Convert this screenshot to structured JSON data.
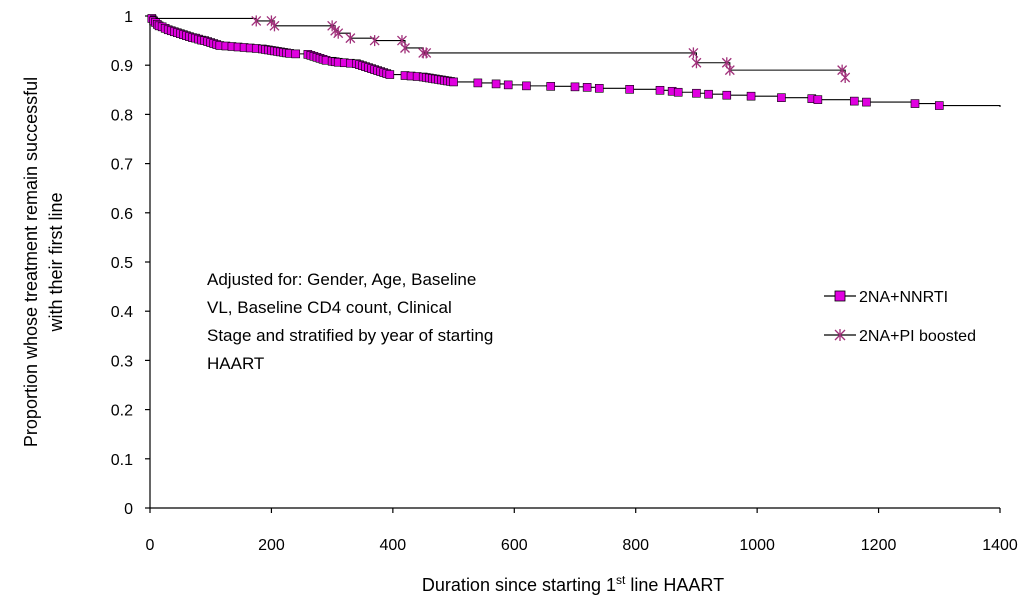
{
  "chart_data": {
    "type": "line",
    "xlabel": "Duration since starting 1st line HAART",
    "xlabel_parts": {
      "pre": "Duration since starting 1",
      "sup": "st",
      "post": " line HAART"
    },
    "ylabel_lines": [
      "Proportion whose treatment remain successful",
      "with their first line"
    ],
    "xlim": [
      0,
      1400
    ],
    "ylim": [
      0,
      1
    ],
    "x_ticks": [
      "0",
      "200",
      "400",
      "600",
      "800",
      "1000",
      "1200",
      "1400"
    ],
    "y_ticks": [
      "0",
      "0.1",
      "0.2",
      "0.3",
      "0.4",
      "0.5",
      "0.6",
      "0.7",
      "0.8",
      "0.9",
      "1"
    ],
    "grid": false,
    "legend_position": "right",
    "annotation": [
      "Adjusted for: Gender, Age, Baseline",
      "VL, Baseline CD4 count, Clinical",
      "Stage and stratified by year of starting",
      "HAART"
    ],
    "series": [
      {
        "name": "2NA+NNRTI",
        "marker": "square",
        "color": "#e000e0",
        "x": [
          0,
          3,
          6,
          9,
          12,
          15,
          20,
          25,
          30,
          35,
          40,
          45,
          50,
          55,
          60,
          65,
          70,
          75,
          80,
          85,
          90,
          95,
          100,
          105,
          110,
          115,
          125,
          135,
          145,
          155,
          165,
          175,
          185,
          190,
          195,
          200,
          205,
          210,
          215,
          220,
          225,
          230,
          240,
          260,
          265,
          270,
          275,
          280,
          285,
          290,
          300,
          305,
          310,
          320,
          330,
          340,
          345,
          350,
          355,
          360,
          365,
          370,
          375,
          380,
          385,
          390,
          395,
          420,
          430,
          440,
          450,
          455,
          460,
          465,
          470,
          475,
          480,
          485,
          490,
          495,
          500,
          540,
          570,
          590,
          620,
          660,
          700,
          720,
          740,
          790,
          840,
          860,
          870,
          900,
          920,
          950,
          990,
          1040,
          1090,
          1100,
          1160,
          1180,
          1260,
          1300,
          1400
        ],
        "y": [
          1.0,
          0.995,
          0.99,
          0.987,
          0.983,
          0.98,
          0.978,
          0.975,
          0.972,
          0.97,
          0.968,
          0.966,
          0.964,
          0.962,
          0.96,
          0.958,
          0.956,
          0.955,
          0.953,
          0.951,
          0.95,
          0.948,
          0.946,
          0.944,
          0.942,
          0.94,
          0.939,
          0.938,
          0.937,
          0.936,
          0.935,
          0.934,
          0.933,
          0.932,
          0.931,
          0.93,
          0.929,
          0.928,
          0.927,
          0.926,
          0.925,
          0.924,
          0.923,
          0.922,
          0.92,
          0.918,
          0.916,
          0.914,
          0.912,
          0.91,
          0.908,
          0.907,
          0.906,
          0.905,
          0.904,
          0.903,
          0.901,
          0.899,
          0.897,
          0.895,
          0.893,
          0.891,
          0.889,
          0.887,
          0.885,
          0.883,
          0.881,
          0.879,
          0.878,
          0.877,
          0.876,
          0.875,
          0.874,
          0.873,
          0.872,
          0.871,
          0.87,
          0.869,
          0.868,
          0.867,
          0.866,
          0.864,
          0.862,
          0.86,
          0.858,
          0.857,
          0.856,
          0.855,
          0.853,
          0.851,
          0.849,
          0.847,
          0.845,
          0.843,
          0.841,
          0.839,
          0.837,
          0.834,
          0.832,
          0.83,
          0.827,
          0.825,
          0.822,
          0.818,
          0.815
        ],
        "censor_x": [
          3,
          6,
          9,
          12,
          15,
          20,
          25,
          30,
          35,
          40,
          45,
          50,
          55,
          60,
          65,
          70,
          75,
          80,
          85,
          90,
          95,
          100,
          105,
          110,
          115,
          125,
          135,
          145,
          155,
          165,
          175,
          185,
          190,
          195,
          200,
          205,
          210,
          215,
          220,
          225,
          230,
          240,
          260,
          265,
          270,
          275,
          280,
          285,
          290,
          300,
          305,
          310,
          320,
          330,
          340,
          345,
          350,
          355,
          360,
          365,
          370,
          375,
          380,
          385,
          390,
          395,
          420,
          430,
          440,
          450,
          455,
          460,
          465,
          470,
          475,
          480,
          485,
          490,
          495,
          500,
          540,
          570,
          590,
          620,
          660,
          700,
          720,
          740,
          790,
          840,
          860,
          870,
          900,
          920,
          950,
          990,
          1040,
          1090,
          1100,
          1160,
          1180,
          1260,
          1300
        ]
      },
      {
        "name": "2NA+PI boosted",
        "marker": "star",
        "color": "#a0307a",
        "x": [
          0,
          10,
          175,
          205,
          305,
          310,
          330,
          370,
          420,
          450,
          900,
          955,
          1145,
          1145
        ],
        "y": [
          1.0,
          0.995,
          0.99,
          0.98,
          0.97,
          0.965,
          0.955,
          0.95,
          0.935,
          0.925,
          0.905,
          0.89,
          0.875,
          0.875
        ],
        "censor_x": [
          175,
          200,
          205,
          300,
          305,
          310,
          330,
          370,
          415,
          420,
          450,
          455,
          895,
          900,
          950,
          955,
          1140,
          1145
        ]
      }
    ]
  }
}
